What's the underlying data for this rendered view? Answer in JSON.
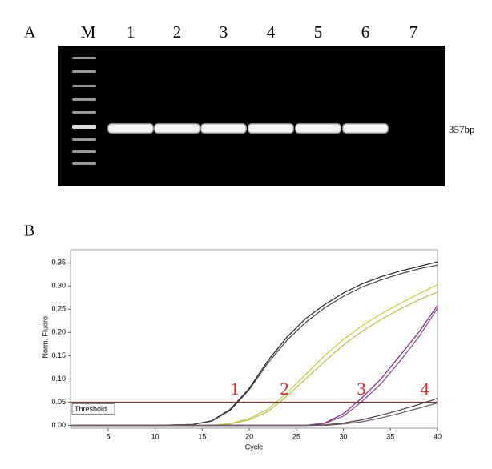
{
  "panel_a": {
    "label": "A",
    "lanes": [
      "M",
      "1",
      "2",
      "3",
      "4",
      "5",
      "6",
      "7"
    ],
    "band_label": "357bp"
  },
  "chart_data": {
    "type": "line",
    "panel_label": "B",
    "x_label": "Cycle",
    "y_label": "Norm. Fluoro.",
    "x": [
      1,
      5,
      10,
      14,
      16,
      18,
      20,
      22,
      24,
      26,
      28,
      30,
      32,
      34,
      36,
      38,
      40
    ],
    "series": [
      {
        "color": "#222222",
        "values": [
          0,
          0,
          0,
          0.002,
          0.01,
          0.035,
          0.08,
          0.14,
          0.19,
          0.23,
          0.26,
          0.285,
          0.305,
          0.32,
          0.332,
          0.342,
          0.352
        ]
      },
      {
        "color": "#444444",
        "values": [
          0,
          0,
          0,
          0.002,
          0.009,
          0.033,
          0.077,
          0.135,
          0.183,
          0.222,
          0.253,
          0.278,
          0.298,
          0.313,
          0.326,
          0.337,
          0.345
        ]
      },
      {
        "color": "#c8cc3c",
        "values": [
          0,
          0,
          0,
          0,
          0,
          0.004,
          0.015,
          0.035,
          0.07,
          0.11,
          0.15,
          0.185,
          0.215,
          0.24,
          0.262,
          0.283,
          0.303
        ]
      },
      {
        "color": "#b8bc50",
        "values": [
          0,
          0,
          0,
          0,
          0,
          0.003,
          0.012,
          0.03,
          0.063,
          0.1,
          0.138,
          0.173,
          0.203,
          0.228,
          0.25,
          0.27,
          0.287
        ]
      },
      {
        "color": "#8b1a8b",
        "values": [
          0,
          0,
          0,
          0,
          0,
          0,
          0,
          0,
          0,
          0,
          0.005,
          0.025,
          0.06,
          0.1,
          0.15,
          0.2,
          0.258
        ]
      },
      {
        "color": "#7a4a8a",
        "values": [
          0,
          0,
          0,
          0,
          0,
          0,
          0,
          0,
          0,
          0,
          0.004,
          0.02,
          0.052,
          0.09,
          0.138,
          0.19,
          0.252
        ]
      },
      {
        "color": "#4a3a4a",
        "values": [
          0,
          0,
          0,
          0,
          0,
          0,
          0,
          0,
          0,
          0,
          0.001,
          0.005,
          0.012,
          0.022,
          0.033,
          0.045,
          0.058
        ]
      },
      {
        "color": "#6a5a6a",
        "values": [
          0,
          0,
          0,
          0,
          0,
          0,
          0,
          0,
          0,
          0,
          0,
          0.003,
          0.008,
          0.016,
          0.026,
          0.037,
          0.048
        ]
      }
    ],
    "xlim": [
      1,
      40
    ],
    "xticks": [
      5,
      10,
      15,
      20,
      25,
      30,
      35,
      40
    ],
    "ylim": [
      -0.006,
      0.378
    ],
    "yticks": [
      {
        "value": 0,
        "label": "0.00"
      },
      0.05,
      {
        "value": 0.1,
        "label": "0.10"
      },
      0.15,
      {
        "value": 0.2,
        "label": "0.20"
      },
      0.25,
      {
        "value": 0.3,
        "label": "0.30"
      },
      0.35
    ],
    "threshold": 0.05,
    "threshold_label": "Threshold",
    "threshold_color": "#8b2a2a",
    "annotations": [
      "1",
      "2",
      "3",
      "4"
    ],
    "annotation_color": "#e02020"
  }
}
